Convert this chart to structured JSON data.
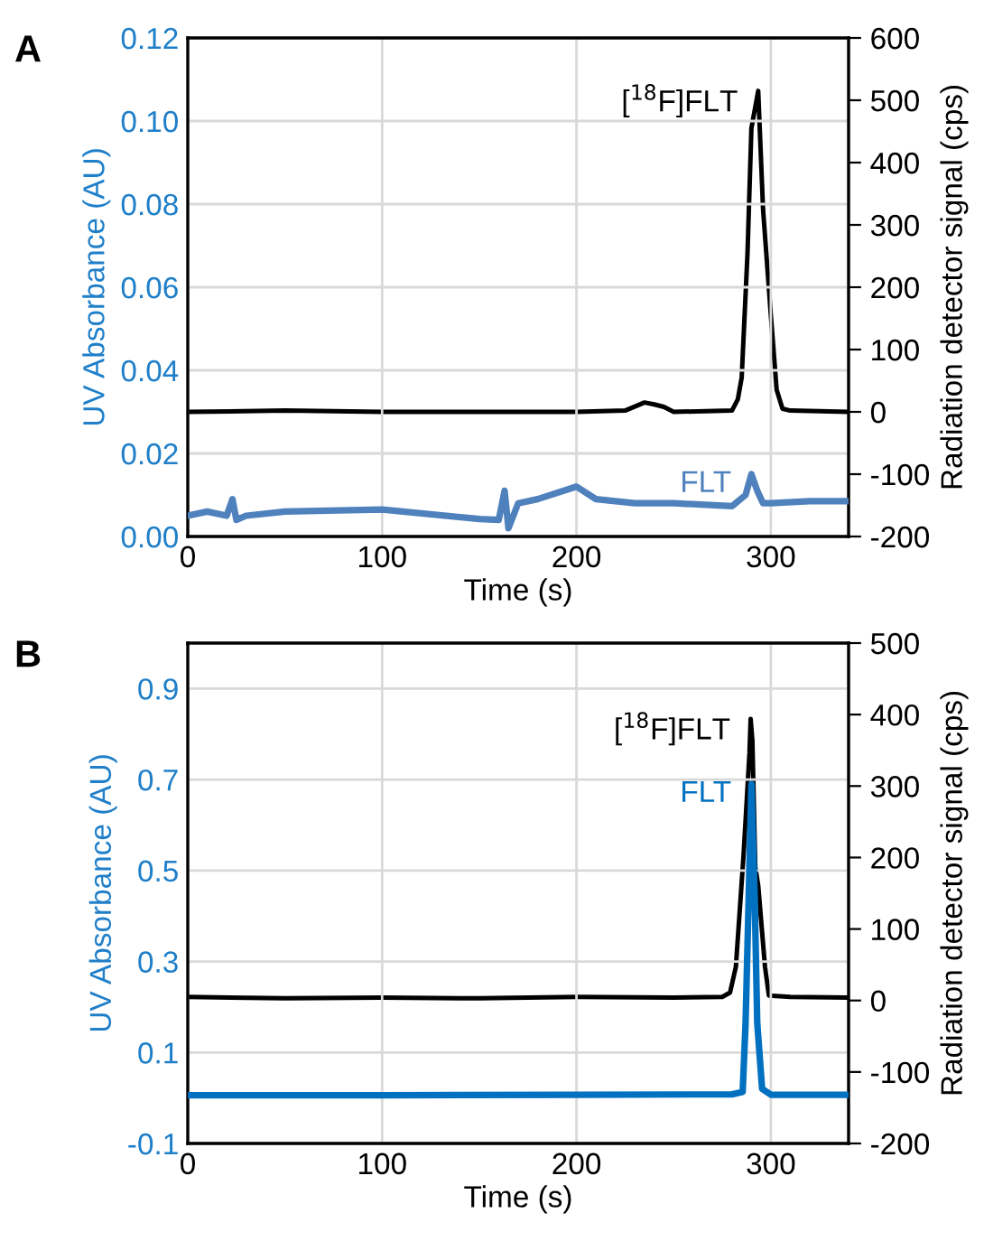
{
  "chart_data": [
    {
      "type": "line",
      "title": "A",
      "xlabel": "Time (s)",
      "ylabel": "UV Absorbance (AU)",
      "y2label": "Radiation detector signal (cps)",
      "xlim": [
        0,
        340
      ],
      "xticks": [
        0,
        100,
        200,
        300
      ],
      "ylim": [
        0,
        0.12
      ],
      "yticks": [
        {
          "value": 0,
          "label": "0.00"
        },
        {
          "value": 0.02,
          "label": "0.02"
        },
        {
          "value": 0.04,
          "label": "0.04"
        },
        {
          "value": 0.06,
          "label": "0.06"
        },
        {
          "value": 0.08,
          "label": "0.08"
        },
        {
          "value": 0.1,
          "label": "0.10"
        },
        {
          "value": 0.12,
          "label": "0.12"
        }
      ],
      "y2lim": [
        -200,
        600
      ],
      "y2ticks": [
        -200,
        -100,
        0,
        100,
        200,
        300,
        400,
        500,
        600
      ],
      "grid": true,
      "legend": false,
      "series": [
        {
          "color": "#4f81bd",
          "x": [
            0,
            10,
            20,
            23,
            25,
            30,
            50,
            100,
            150,
            160,
            163,
            165,
            170,
            180,
            200,
            210,
            230,
            250,
            280,
            287,
            290,
            293,
            296,
            300,
            320,
            340
          ],
          "values": [
            0.005,
            0.006,
            0.005,
            0.009,
            0.004,
            0.005,
            0.006,
            0.0065,
            0.0042,
            0.004,
            0.011,
            0.002,
            0.008,
            0.009,
            0.012,
            0.009,
            0.008,
            0.008,
            0.0073,
            0.01,
            0.015,
            0.011,
            0.008,
            0.008,
            0.0085,
            0.0085
          ]
        },
        {
          "color": "#000000",
          "axis": "y2",
          "x": [
            0,
            50,
            100,
            150,
            200,
            225,
            235,
            240,
            245,
            250,
            280,
            283,
            285,
            288,
            290,
            293.5,
            296,
            300,
            303,
            306,
            310,
            340
          ],
          "values": [
            0,
            2,
            0,
            0,
            0,
            2,
            15,
            12,
            8,
            0,
            2,
            20,
            55,
            255,
            455,
            515,
            325,
            155,
            35,
            5,
            2,
            0
          ]
        }
      ],
      "annotations": [
        "FLT",
        "[$^{18}$F]FLT"
      ]
    },
    {
      "type": "line",
      "title": "B",
      "xlabel": "Time (s)",
      "ylabel": "UV Absorbance (AU)",
      "y2label": "Radiation detector signal (cps)",
      "xlim": [
        0,
        340
      ],
      "xticks": [
        0,
        100,
        200,
        300
      ],
      "ylim": [
        -0.1,
        1.0
      ],
      "yticks": [
        {
          "value": -0.1,
          "label": "-0.1"
        },
        0.1,
        0.3,
        0.5,
        0.7,
        0.9
      ],
      "y2lim": [
        -200,
        500
      ],
      "y2ticks": [
        -200,
        -100,
        0,
        100,
        200,
        300,
        400,
        500
      ],
      "grid": true,
      "legend": false,
      "series": [
        {
          "color": "#0070c0",
          "x": [
            0,
            100,
            200,
            280,
            285.5,
            287,
            288.6,
            290,
            291.7,
            293,
            295.5,
            300,
            340
          ],
          "values": [
            0.006,
            0.006,
            0.007,
            0.008,
            0.013,
            0.165,
            0.44,
            0.69,
            0.44,
            0.165,
            0.02,
            0.007,
            0.007
          ]
        },
        {
          "color": "#000000",
          "axis": "y2",
          "x": [
            0,
            50,
            100,
            150,
            200,
            250,
            275,
            279,
            282,
            286,
            289,
            289.6,
            290.5,
            292,
            293.5,
            297,
            299,
            310,
            340
          ],
          "values": [
            5,
            3,
            4,
            3,
            5,
            4,
            5,
            11,
            47,
            205,
            346,
            394,
            364,
            187,
            161,
            47,
            7,
            5,
            4
          ]
        }
      ],
      "annotations": [
        "FLT",
        "[$^{18}$F]FLT"
      ]
    }
  ]
}
